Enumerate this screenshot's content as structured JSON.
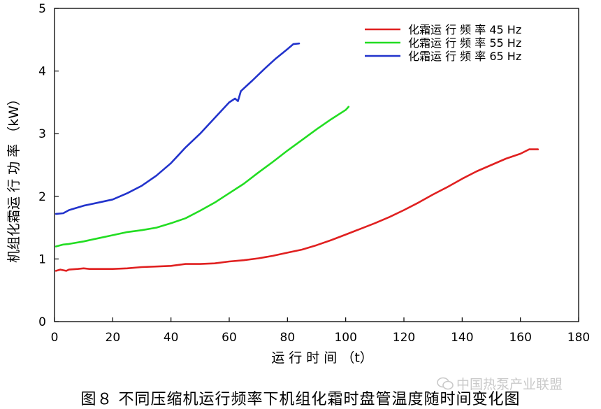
{
  "chart_data": {
    "type": "line",
    "title": "",
    "xlabel": "运 行 时 间 （t）",
    "ylabel": "机组化霜运 行 功 率 （kW）",
    "xlim": [
      0,
      180
    ],
    "ylim": [
      0,
      5
    ],
    "x_ticks": [
      "0",
      "20",
      "40",
      "60",
      "80",
      "100",
      "120",
      "140",
      "160",
      "180"
    ],
    "y_ticks": [
      "0",
      "1",
      "2",
      "3",
      "4",
      "5"
    ],
    "legend_position": "top-right",
    "grid": false,
    "series": [
      {
        "name": "化霜运 行 频 率 45 Hz",
        "color": "#e02020",
        "points": [
          [
            0.5,
            0.81
          ],
          [
            2,
            0.83
          ],
          [
            3,
            0.82
          ],
          [
            4,
            0.81
          ],
          [
            5,
            0.83
          ],
          [
            8,
            0.84
          ],
          [
            10,
            0.85
          ],
          [
            12,
            0.84
          ],
          [
            20,
            0.84
          ],
          [
            25,
            0.85
          ],
          [
            30,
            0.87
          ],
          [
            35,
            0.88
          ],
          [
            40,
            0.89
          ],
          [
            45,
            0.92
          ],
          [
            50,
            0.92
          ],
          [
            55,
            0.93
          ],
          [
            60,
            0.96
          ],
          [
            65,
            0.98
          ],
          [
            70,
            1.01
          ],
          [
            75,
            1.05
          ],
          [
            80,
            1.1
          ],
          [
            85,
            1.15
          ],
          [
            90,
            1.22
          ],
          [
            95,
            1.3
          ],
          [
            100,
            1.39
          ],
          [
            105,
            1.48
          ],
          [
            110,
            1.57
          ],
          [
            115,
            1.67
          ],
          [
            120,
            1.78
          ],
          [
            125,
            1.9
          ],
          [
            130,
            2.03
          ],
          [
            135,
            2.15
          ],
          [
            140,
            2.28
          ],
          [
            145,
            2.4
          ],
          [
            150,
            2.5
          ],
          [
            155,
            2.6
          ],
          [
            160,
            2.68
          ],
          [
            163,
            2.75
          ],
          [
            166,
            2.75
          ]
        ]
      },
      {
        "name": "化霜运 行 频 率 55 Hz",
        "color": "#22dd22",
        "points": [
          [
            0.5,
            1.2
          ],
          [
            3,
            1.23
          ],
          [
            5,
            1.24
          ],
          [
            10,
            1.28
          ],
          [
            15,
            1.33
          ],
          [
            20,
            1.38
          ],
          [
            25,
            1.43
          ],
          [
            30,
            1.46
          ],
          [
            35,
            1.5
          ],
          [
            40,
            1.57
          ],
          [
            45,
            1.65
          ],
          [
            50,
            1.77
          ],
          [
            55,
            1.9
          ],
          [
            60,
            2.05
          ],
          [
            65,
            2.2
          ],
          [
            70,
            2.38
          ],
          [
            75,
            2.55
          ],
          [
            80,
            2.73
          ],
          [
            85,
            2.9
          ],
          [
            90,
            3.07
          ],
          [
            95,
            3.23
          ],
          [
            100,
            3.38
          ],
          [
            101,
            3.43
          ]
        ]
      },
      {
        "name": "化霜运 行 频 率 65 Hz",
        "color": "#2233cc",
        "points": [
          [
            0.5,
            1.72
          ],
          [
            3,
            1.73
          ],
          [
            5,
            1.78
          ],
          [
            10,
            1.85
          ],
          [
            15,
            1.9
          ],
          [
            20,
            1.95
          ],
          [
            25,
            2.05
          ],
          [
            30,
            2.17
          ],
          [
            35,
            2.33
          ],
          [
            40,
            2.53
          ],
          [
            45,
            2.78
          ],
          [
            50,
            3.0
          ],
          [
            55,
            3.25
          ],
          [
            60,
            3.5
          ],
          [
            62,
            3.56
          ],
          [
            63,
            3.52
          ],
          [
            64,
            3.68
          ],
          [
            68,
            3.85
          ],
          [
            72,
            4.03
          ],
          [
            76,
            4.2
          ],
          [
            80,
            4.35
          ],
          [
            82,
            4.43
          ],
          [
            84,
            4.44
          ]
        ]
      }
    ]
  },
  "caption": "图８ 不同压缩机运行频率下机组化霜时盘管温度随时间变化图",
  "watermark": "中国热泵产业联盟"
}
